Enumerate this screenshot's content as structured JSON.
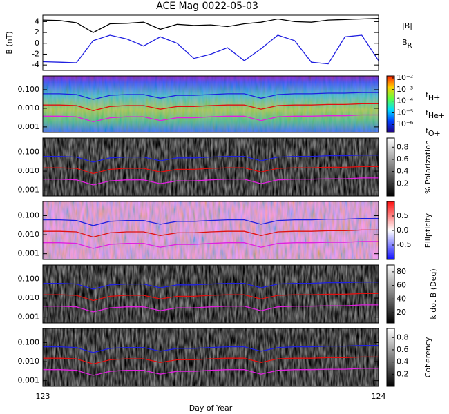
{
  "chart_data": [
    {
      "type": "line",
      "title": "ACE Mag 0022-05-03",
      "ylabel": "B (nT)",
      "xlim": [
        123,
        124
      ],
      "ylim": [
        -5,
        5.2
      ],
      "yticks": [
        4,
        2,
        0,
        -2,
        -4
      ],
      "x": [
        123,
        123.05,
        123.1,
        123.15,
        123.2,
        123.25,
        123.3,
        123.35,
        123.4,
        123.45,
        123.5,
        123.55,
        123.6,
        123.65,
        123.7,
        123.75,
        123.8,
        123.85,
        123.9,
        123.95,
        124
      ],
      "series": [
        {
          "name": "|B|",
          "color": "#000000",
          "values": [
            4.3,
            4.2,
            3.8,
            2.0,
            3.6,
            3.7,
            3.9,
            2.6,
            3.5,
            3.3,
            3.4,
            3.1,
            3.6,
            3.9,
            4.5,
            4.0,
            3.9,
            4.3,
            4.4,
            4.5,
            4.6
          ]
        },
        {
          "name": "BR",
          "color": "#1f1fe0",
          "values": [
            -3.4,
            -3.5,
            -3.6,
            0.5,
            1.5,
            0.8,
            -0.5,
            1.2,
            0,
            -2.8,
            -2,
            -0.8,
            -3.2,
            -1,
            1.5,
            0.5,
            -3.5,
            -3.8,
            1.2,
            1.5,
            -3.2
          ]
        }
      ]
    },
    {
      "type": "spectrogram",
      "ylog": true,
      "legend": true,
      "background": "jet",
      "xlim": [
        123,
        124
      ],
      "ylim": [
        0.0005,
        0.55
      ],
      "yticks": [
        {
          "value": 0.1,
          "label": "0.100"
        },
        {
          "value": 0.01,
          "label": "0.010"
        },
        {
          "value": 0.001,
          "label": "0.001"
        }
      ],
      "colorbar": {
        "colormap": "jet",
        "log": true,
        "clim": [
          2e-07,
          0.015
        ],
        "ticks": [
          {
            "value": 0.01,
            "label": "10⁻²"
          },
          {
            "value": 0.001,
            "label": "10⁻³"
          },
          {
            "value": 0.0001,
            "label": "10⁻⁴"
          },
          {
            "value": 1e-05,
            "label": "10⁻⁵"
          },
          {
            "value": 1e-06,
            "label": "10⁻⁶"
          }
        ]
      },
      "x": [
        123,
        123.05,
        123.1,
        123.15,
        123.2,
        123.25,
        123.3,
        123.35,
        123.4,
        123.45,
        123.5,
        123.55,
        123.6,
        123.65,
        123.7,
        123.75,
        123.8,
        123.85,
        123.9,
        123.95,
        124
      ],
      "series": [
        {
          "name": "fH+",
          "color": "#1f1fe0",
          "values": [
            0.06,
            0.06,
            0.055,
            0.03,
            0.05,
            0.055,
            0.055,
            0.035,
            0.05,
            0.05,
            0.055,
            0.06,
            0.06,
            0.035,
            0.055,
            0.06,
            0.06,
            0.065,
            0.065,
            0.07,
            0.07
          ]
        },
        {
          "name": "fHe+",
          "color": "#e01010",
          "values": [
            0.015,
            0.015,
            0.014,
            0.0075,
            0.0125,
            0.014,
            0.014,
            0.009,
            0.0125,
            0.0125,
            0.014,
            0.015,
            0.015,
            0.009,
            0.014,
            0.015,
            0.015,
            0.016,
            0.016,
            0.0175,
            0.0175
          ]
        },
        {
          "name": "fO+",
          "color": "#e020e0",
          "values": [
            0.0038,
            0.0038,
            0.0035,
            0.0019,
            0.0031,
            0.0035,
            0.0035,
            0.0022,
            0.0031,
            0.0031,
            0.0035,
            0.0038,
            0.0038,
            0.0022,
            0.0035,
            0.0038,
            0.0038,
            0.004,
            0.004,
            0.0044,
            0.0044
          ]
        }
      ]
    },
    {
      "type": "spectrogram",
      "ylog": true,
      "background": "gray",
      "xlim": [
        123,
        124
      ],
      "ylim": [
        0.0005,
        0.55
      ],
      "yticks": [
        {
          "value": 0.1,
          "label": "0.100"
        },
        {
          "value": 0.01,
          "label": "0.010"
        },
        {
          "value": 0.001,
          "label": "0.001"
        }
      ],
      "colorbar": {
        "colormap": "gray",
        "label": "% Polarization",
        "clim": [
          0,
          0.95
        ],
        "ticks": [
          0.2,
          0.4,
          0.6,
          0.8
        ]
      },
      "x": [
        123,
        123.05,
        123.1,
        123.15,
        123.2,
        123.25,
        123.3,
        123.35,
        123.4,
        123.45,
        123.5,
        123.55,
        123.6,
        123.65,
        123.7,
        123.75,
        123.8,
        123.85,
        123.9,
        123.95,
        124
      ],
      "series": [
        {
          "color": "#1f1fe0",
          "values": [
            0.06,
            0.06,
            0.055,
            0.03,
            0.05,
            0.055,
            0.055,
            0.035,
            0.05,
            0.05,
            0.055,
            0.06,
            0.06,
            0.035,
            0.055,
            0.06,
            0.06,
            0.065,
            0.065,
            0.07,
            0.07
          ]
        },
        {
          "color": "#e01010",
          "values": [
            0.015,
            0.015,
            0.014,
            0.0075,
            0.0125,
            0.014,
            0.014,
            0.009,
            0.0125,
            0.0125,
            0.014,
            0.015,
            0.015,
            0.009,
            0.014,
            0.015,
            0.015,
            0.016,
            0.016,
            0.0175,
            0.0175
          ]
        },
        {
          "color": "#e020e0",
          "values": [
            0.0038,
            0.0038,
            0.0035,
            0.0019,
            0.0031,
            0.0035,
            0.0035,
            0.0022,
            0.0031,
            0.0031,
            0.0035,
            0.0038,
            0.0038,
            0.0022,
            0.0035,
            0.0038,
            0.0038,
            0.004,
            0.004,
            0.0044,
            0.0044
          ]
        }
      ]
    },
    {
      "type": "spectrogram",
      "ylog": true,
      "background": "bwr",
      "xlim": [
        123,
        124
      ],
      "ylim": [
        0.0005,
        0.55
      ],
      "yticks": [
        {
          "value": 0.1,
          "label": "0.100"
        },
        {
          "value": 0.01,
          "label": "0.010"
        },
        {
          "value": 0.001,
          "label": "0.001"
        }
      ],
      "colorbar": {
        "colormap": "bwr",
        "label": "Ellipticity",
        "clim": [
          -1,
          1
        ],
        "ticks": [
          0.5,
          {
            "value": 0,
            "label": "0.0"
          },
          -0.5
        ]
      },
      "x": [
        123,
        123.05,
        123.1,
        123.15,
        123.2,
        123.25,
        123.3,
        123.35,
        123.4,
        123.45,
        123.5,
        123.55,
        123.6,
        123.65,
        123.7,
        123.75,
        123.8,
        123.85,
        123.9,
        123.95,
        124
      ],
      "series": [
        {
          "color": "#1f1fe0",
          "values": [
            0.06,
            0.06,
            0.055,
            0.03,
            0.05,
            0.055,
            0.055,
            0.035,
            0.05,
            0.05,
            0.055,
            0.06,
            0.06,
            0.035,
            0.055,
            0.06,
            0.06,
            0.065,
            0.065,
            0.07,
            0.07
          ]
        },
        {
          "color": "#e01010",
          "values": [
            0.015,
            0.015,
            0.014,
            0.0075,
            0.0125,
            0.014,
            0.014,
            0.009,
            0.0125,
            0.0125,
            0.014,
            0.015,
            0.015,
            0.009,
            0.014,
            0.015,
            0.015,
            0.016,
            0.016,
            0.0175,
            0.0175
          ]
        },
        {
          "color": "#e020e0",
          "values": [
            0.0038,
            0.0038,
            0.0035,
            0.0019,
            0.0031,
            0.0035,
            0.0035,
            0.0022,
            0.0031,
            0.0031,
            0.0035,
            0.0038,
            0.0038,
            0.0022,
            0.0035,
            0.0038,
            0.0038,
            0.004,
            0.004,
            0.0044,
            0.0044
          ]
        }
      ]
    },
    {
      "type": "spectrogram",
      "ylog": true,
      "background": "gray",
      "xlim": [
        123,
        124
      ],
      "ylim": [
        0.0005,
        0.55
      ],
      "yticks": [
        {
          "value": 0.1,
          "label": "0.100"
        },
        {
          "value": 0.01,
          "label": "0.010"
        },
        {
          "value": 0.001,
          "label": "0.001"
        }
      ],
      "colorbar": {
        "colormap": "gray",
        "label": "k dot B (Deg)",
        "clim": [
          5,
          90
        ],
        "ticks": [
          80,
          60,
          40,
          20
        ]
      },
      "x": [
        123,
        123.05,
        123.1,
        123.15,
        123.2,
        123.25,
        123.3,
        123.35,
        123.4,
        123.45,
        123.5,
        123.55,
        123.6,
        123.65,
        123.7,
        123.75,
        123.8,
        123.85,
        123.9,
        123.95,
        124
      ],
      "series": [
        {
          "color": "#1f1fe0",
          "values": [
            0.06,
            0.06,
            0.055,
            0.03,
            0.05,
            0.055,
            0.055,
            0.035,
            0.05,
            0.05,
            0.055,
            0.06,
            0.06,
            0.035,
            0.055,
            0.06,
            0.06,
            0.065,
            0.065,
            0.07,
            0.07
          ]
        },
        {
          "color": "#e01010",
          "values": [
            0.015,
            0.015,
            0.014,
            0.0075,
            0.0125,
            0.014,
            0.014,
            0.009,
            0.0125,
            0.0125,
            0.014,
            0.015,
            0.015,
            0.009,
            0.014,
            0.015,
            0.015,
            0.016,
            0.016,
            0.0175,
            0.0175
          ]
        },
        {
          "color": "#e020e0",
          "values": [
            0.0038,
            0.0038,
            0.0035,
            0.0019,
            0.0031,
            0.0035,
            0.0035,
            0.0022,
            0.0031,
            0.0031,
            0.0035,
            0.0038,
            0.0038,
            0.0022,
            0.0035,
            0.0038,
            0.0038,
            0.004,
            0.004,
            0.0044,
            0.0044
          ]
        }
      ]
    },
    {
      "type": "spectrogram",
      "ylog": true,
      "background": "gray",
      "xlim": [
        123,
        124
      ],
      "xticks": [
        123,
        124
      ],
      "xlabel": "Day of Year",
      "ylim": [
        0.0005,
        0.55
      ],
      "yticks": [
        {
          "value": 0.1,
          "label": "0.100"
        },
        {
          "value": 0.01,
          "label": "0.010"
        },
        {
          "value": 0.001,
          "label": "0.001"
        }
      ],
      "colorbar": {
        "colormap": "gray",
        "label": "Coherency",
        "clim": [
          0,
          0.95
        ],
        "ticks": [
          0.2,
          0.4,
          0.6,
          0.8
        ]
      },
      "x": [
        123,
        123.05,
        123.1,
        123.15,
        123.2,
        123.25,
        123.3,
        123.35,
        123.4,
        123.45,
        123.5,
        123.55,
        123.6,
        123.65,
        123.7,
        123.75,
        123.8,
        123.85,
        123.9,
        123.95,
        124
      ],
      "series": [
        {
          "color": "#1f1fe0",
          "values": [
            0.06,
            0.06,
            0.055,
            0.03,
            0.05,
            0.055,
            0.055,
            0.035,
            0.05,
            0.05,
            0.055,
            0.06,
            0.06,
            0.035,
            0.055,
            0.06,
            0.06,
            0.065,
            0.065,
            0.07,
            0.07
          ]
        },
        {
          "color": "#e01010",
          "values": [
            0.015,
            0.015,
            0.014,
            0.0075,
            0.0125,
            0.014,
            0.014,
            0.009,
            0.0125,
            0.0125,
            0.014,
            0.015,
            0.015,
            0.009,
            0.014,
            0.015,
            0.015,
            0.016,
            0.016,
            0.0175,
            0.0175
          ]
        },
        {
          "color": "#e020e0",
          "values": [
            0.0038,
            0.0038,
            0.0035,
            0.0019,
            0.0031,
            0.0035,
            0.0035,
            0.0022,
            0.0031,
            0.0031,
            0.0035,
            0.0038,
            0.0038,
            0.0022,
            0.0035,
            0.0038,
            0.0038,
            0.004,
            0.004,
            0.0044,
            0.0044
          ]
        }
      ]
    }
  ]
}
